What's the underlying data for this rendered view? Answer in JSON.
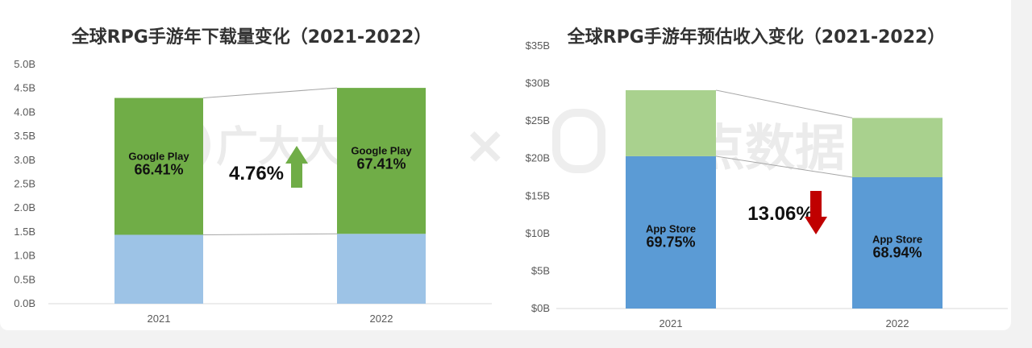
{
  "colors": {
    "google_play": "#70ad47",
    "android_other": "#9dc3e6",
    "app_store": "#5b9bd5",
    "ios_other": "#a9d18e",
    "up_arrow": "#70ad47",
    "down_arrow": "#c00000",
    "connector": "#a6a6a6",
    "axis": "#d9d9d9"
  },
  "watermark": {
    "left_brand": "广大大",
    "separator": "×",
    "right_brand": "点点数据"
  },
  "chart_data": [
    {
      "type": "bar",
      "stacked": true,
      "title": "全球RPG手游年下载量变化（2021-2022）",
      "categories": [
        "2021",
        "2022"
      ],
      "ylim": [
        0,
        5
      ],
      "yticks": [
        "0.0B",
        "0.5B",
        "1.0B",
        "1.5B",
        "2.0B",
        "2.5B",
        "3.0B",
        "3.5B",
        "4.0B",
        "4.5B",
        "5.0B"
      ],
      "series": [
        {
          "values": [
            1.44,
            1.46
          ],
          "color_key": "android_other"
        },
        {
          "values": [
            2.86,
            3.05
          ],
          "color_key": "google_play"
        }
      ],
      "bar_labels": [
        {
          "name": "Google Play",
          "pct": "66.41%"
        },
        {
          "name": "Google Play",
          "pct": "67.41%"
        }
      ],
      "change": {
        "text": "4.76%",
        "direction": "up"
      }
    },
    {
      "type": "bar",
      "stacked": true,
      "title": "全球RPG手游年预估收入变化（2021-2022）",
      "categories": [
        "2021",
        "2022"
      ],
      "ylim": [
        0,
        35
      ],
      "yticks": [
        "$0B",
        "$5B",
        "$10B",
        "$15B",
        "$20B",
        "$25B",
        "$30B",
        "$35B"
      ],
      "series": [
        {
          "values": [
            20.3,
            17.5
          ],
          "color_key": "app_store"
        },
        {
          "values": [
            8.8,
            7.9
          ],
          "color_key": "ios_other"
        }
      ],
      "bar_labels": [
        {
          "name": "App Store",
          "pct": "69.75%"
        },
        {
          "name": "App Store",
          "pct": "68.94%"
        }
      ],
      "change": {
        "text": "13.06%",
        "direction": "down"
      }
    }
  ]
}
